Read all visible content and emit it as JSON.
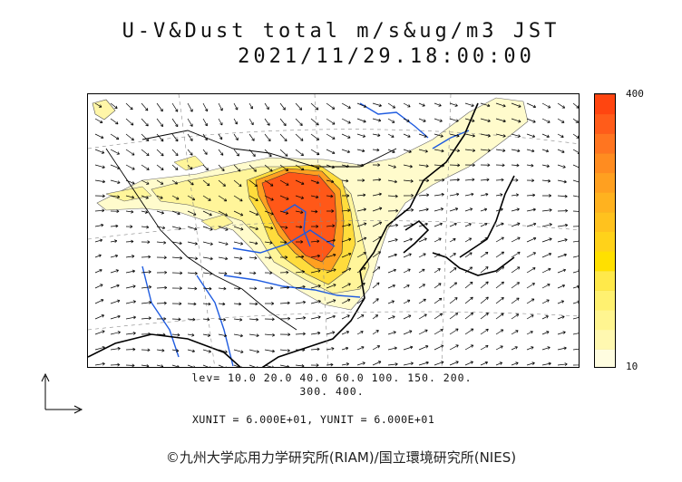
{
  "title": "U-V&Dust total m/s&ug/m3 JST",
  "datetime": "2021/11/29.18:00:00",
  "colorbar": {
    "max_label": "400",
    "min_label": "10",
    "colors": [
      "#fffde0",
      "#fff8b0",
      "#fff590",
      "#fff170",
      "#ffe94a",
      "#ffe000",
      "#ffd21a",
      "#ffc21e",
      "#ffb21f",
      "#ffa020",
      "#ff8c20",
      "#ff7520",
      "#ff5c1a",
      "#ff4510"
    ]
  },
  "levels_line1": "lev= 10.0 20.0 40.0 60.0 100. 150. 200.",
  "levels_line2": "300. 400.",
  "units_line": "XUNIT = 6.000E+01, YUNIT = 6.000E+01",
  "credit": "©九州大学応用力学研究所(RIAM)/国立環境研究所(NIES)",
  "colors": {
    "coast": "#000000",
    "river": "#1e5be0",
    "wind": "#000000"
  }
}
